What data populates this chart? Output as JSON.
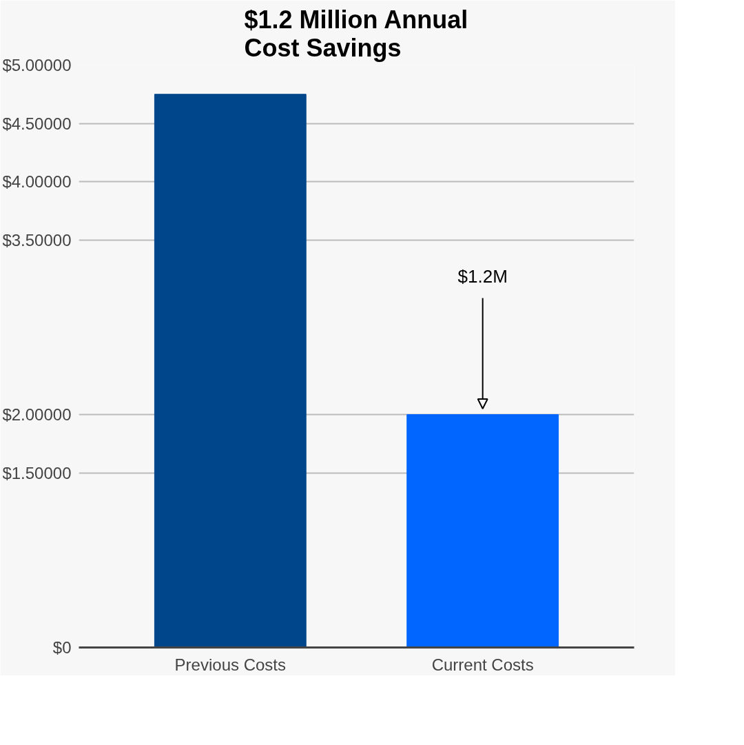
{
  "chart_data": {
    "type": "bar",
    "title": "$1.2 Million Annual\nCost Savings",
    "categories": [
      "Previous Costs",
      "Current Costs"
    ],
    "values": [
      4.75,
      2
    ],
    "colors": [
      "#00468b",
      "#0066ff"
    ],
    "ylim": [
      0,
      5
    ],
    "yticks": [
      {
        "value": 0,
        "label": "$0"
      },
      {
        "value": 1.5,
        "label": "$1.50000"
      },
      {
        "value": 2,
        "label": "$2.00000"
      },
      {
        "value": 3.5,
        "label": "$3.50000"
      },
      {
        "value": 4,
        "label": "$4.00000"
      },
      {
        "value": 4.5,
        "label": "$4.50000"
      },
      {
        "value": 5,
        "label": "$5.00000"
      }
    ],
    "grid": "y",
    "annotations": [
      {
        "text": "$1.2M",
        "x": "Current Costs",
        "y": 2
      }
    ]
  }
}
